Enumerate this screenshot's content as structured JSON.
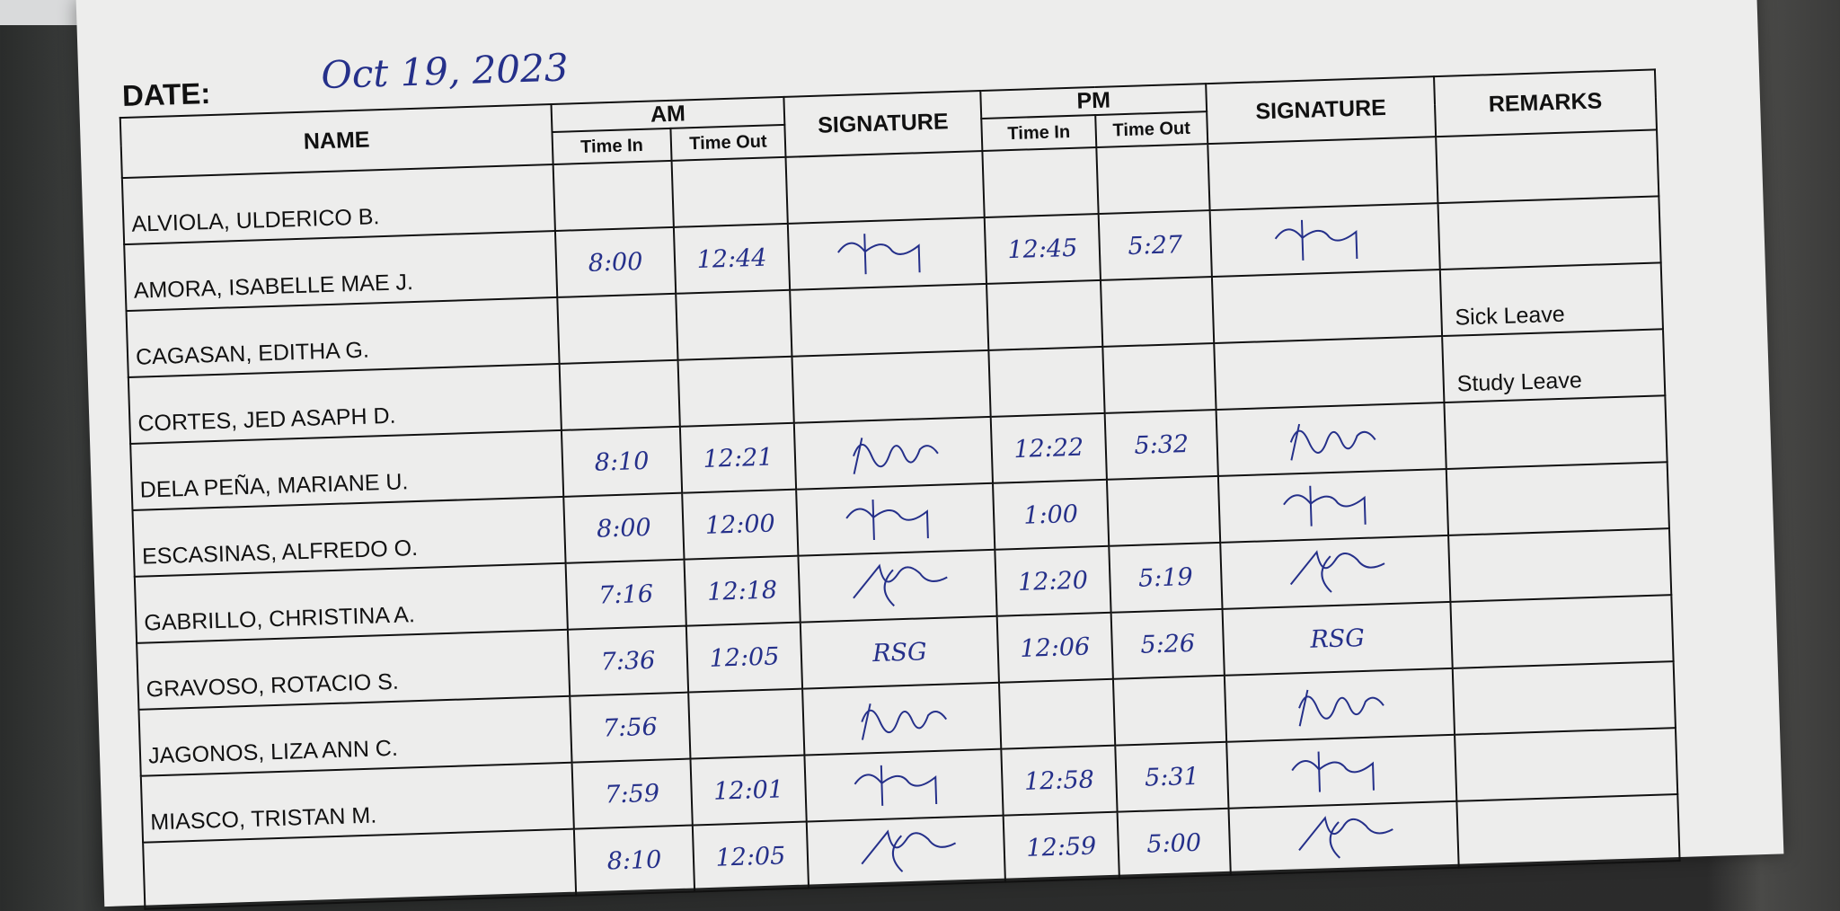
{
  "sheet": {
    "date_label": "DATE:",
    "date_value": "Oct 19, 2023",
    "headers": {
      "name": "NAME",
      "am": "AM",
      "pm": "PM",
      "signature": "SIGNATURE",
      "remarks": "REMARKS",
      "time_in": "Time In",
      "time_out": "Time Out"
    },
    "ink_color": "#25308a",
    "rows": [
      {
        "name": "ALVIOLA, ULDERICO B.",
        "am_in": "",
        "am_out": "",
        "am_signed": false,
        "pm_in": "",
        "pm_out": "",
        "pm_signed": false,
        "remarks": ""
      },
      {
        "name": "AMORA, ISABELLE MAE J.",
        "am_in": "8:00",
        "am_out": "12:44",
        "am_signed": true,
        "pm_in": "12:45",
        "pm_out": "5:27",
        "pm_signed": true,
        "remarks": ""
      },
      {
        "name": "CAGASAN, EDITHA G.",
        "am_in": "",
        "am_out": "",
        "am_signed": false,
        "pm_in": "",
        "pm_out": "",
        "pm_signed": false,
        "remarks": "Sick Leave"
      },
      {
        "name": "CORTES, JED ASAPH D.",
        "am_in": "",
        "am_out": "",
        "am_signed": false,
        "pm_in": "",
        "pm_out": "",
        "pm_signed": false,
        "remarks": "Study Leave"
      },
      {
        "name": "DELA PEÑA, MARIANE U.",
        "am_in": "8:10",
        "am_out": "12:21",
        "am_signed": true,
        "pm_in": "12:22",
        "pm_out": "5:32",
        "pm_signed": true,
        "remarks": ""
      },
      {
        "name": "ESCASINAS, ALFREDO O.",
        "am_in": "8:00",
        "am_out": "12:00",
        "am_signed": true,
        "pm_in": "1:00",
        "pm_out": "",
        "pm_signed": true,
        "remarks": ""
      },
      {
        "name": "GABRILLO, CHRISTINA A.",
        "am_in": "7:16",
        "am_out": "12:18",
        "am_signed": true,
        "pm_in": "12:20",
        "pm_out": "5:19",
        "pm_signed": true,
        "remarks": ""
      },
      {
        "name": "GRAVOSO, ROTACIO S.",
        "am_in": "7:36",
        "am_out": "12:05",
        "am_signed": true,
        "pm_in": "12:06",
        "pm_out": "5:26",
        "pm_signed": true,
        "remarks": "",
        "signature_text": "RSG"
      },
      {
        "name": "JAGONOS, LIZA ANN C.",
        "am_in": "7:56",
        "am_out": "",
        "am_signed": true,
        "pm_in": "",
        "pm_out": "",
        "pm_signed": true,
        "remarks": ""
      },
      {
        "name": "MIASCO, TRISTAN M.",
        "am_in": "7:59",
        "am_out": "12:01",
        "am_signed": true,
        "pm_in": "12:58",
        "pm_out": "5:31",
        "pm_signed": true,
        "remarks": ""
      },
      {
        "name": "",
        "am_in": "8:10",
        "am_out": "12:05",
        "am_signed": true,
        "pm_in": "12:59",
        "pm_out": "5:00",
        "pm_signed": true,
        "remarks": ""
      }
    ]
  }
}
